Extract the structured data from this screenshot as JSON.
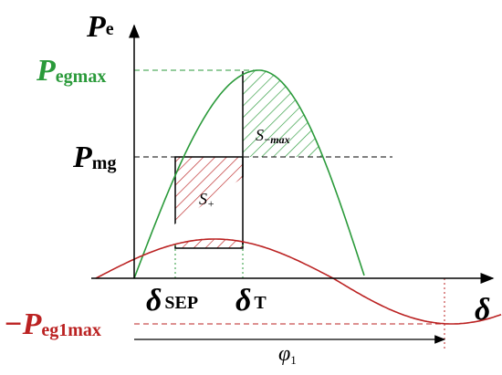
{
  "axis_y": {
    "symbol": "P",
    "sub": "e"
  },
  "levels": {
    "egmax": {
      "symbol": "P",
      "sub": "egmax"
    },
    "mg": {
      "symbol": "P",
      "sub": "mg"
    },
    "eg1max": {
      "symbol": "−P",
      "sub": "eg1max"
    }
  },
  "areas": {
    "plus": {
      "symbol": "S",
      "sub": "+"
    },
    "minus": {
      "symbol": "S",
      "sub": "−max"
    }
  },
  "angles": {
    "sep": {
      "symbol": "δ",
      "sub": "SEP"
    },
    "t": {
      "symbol": "δ",
      "sub": "T"
    },
    "axis_x": {
      "symbol": "δ"
    },
    "phi": {
      "symbol": "φ",
      "sub": "1"
    }
  }
}
